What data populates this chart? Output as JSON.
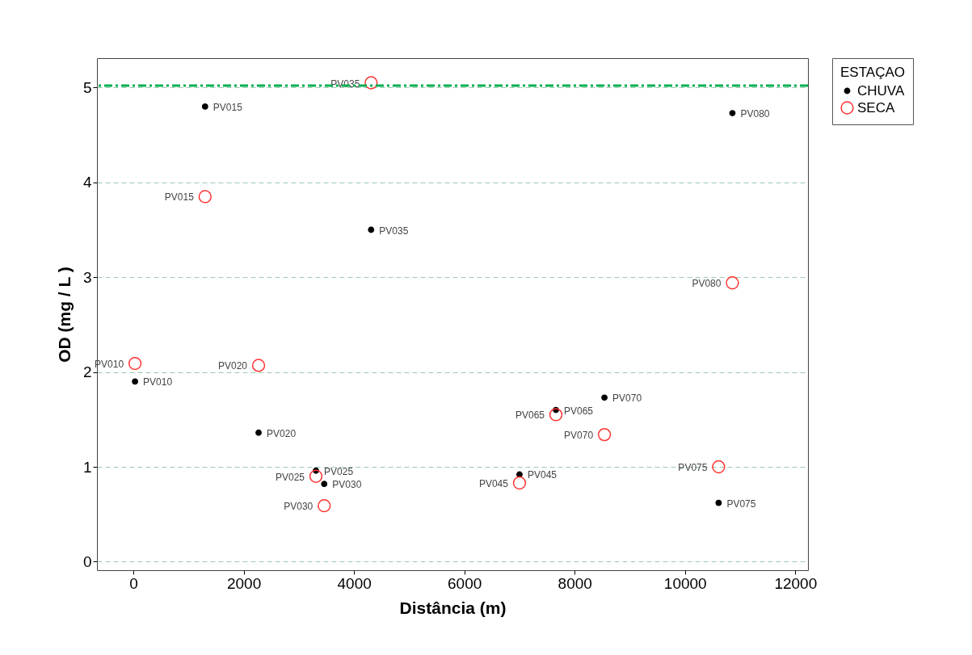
{
  "chart_data": {
    "type": "scatter",
    "xlabel": "Distância (m)",
    "ylabel": "OD (mg / L )",
    "legend_title": "ESTAÇAO",
    "legend": "right",
    "x": [
      30,
      1300,
      2270,
      3310,
      3460,
      4310,
      7000,
      7660,
      8540,
      10610,
      10860
    ],
    "series": [
      {
        "name": "CHUVA",
        "color": "#000000",
        "marker": "circle",
        "values": [
          1.9,
          4.8,
          1.36,
          0.96,
          0.82,
          3.5,
          0.92,
          1.6,
          1.73,
          0.62,
          4.73
        ],
        "value_labels": [
          "PV010",
          "PV015",
          "PV020",
          "PV025",
          "PV030",
          "PV035",
          "PV045",
          "PV065",
          "PV070",
          "PV075",
          "PV080"
        ]
      },
      {
        "name": "SECA",
        "color": "#ff3333",
        "marker": "circle",
        "values": [
          2.09,
          3.85,
          2.07,
          0.9,
          0.59,
          5.05,
          0.83,
          1.55,
          1.34,
          1.0,
          2.94
        ],
        "value_labels": [
          "PV010",
          "PV015",
          "PV020",
          "PV025",
          "PV030",
          "PV035",
          "PV045",
          "PV065",
          "PV070",
          "PV075",
          "PV080"
        ]
      }
    ],
    "xlim": [
      -660,
      12230
    ],
    "xticks": [
      0,
      2000,
      4000,
      6000,
      8000,
      10000,
      12000
    ],
    "ylim": [
      -0.09,
      5.31
    ],
    "yticks": [
      0,
      1,
      2,
      3,
      4,
      5
    ],
    "grid": "y",
    "ref_lines": [
      {
        "axis": "y",
        "value": 5.02,
        "color": "#00b050",
        "line_style": "dashed"
      }
    ]
  }
}
